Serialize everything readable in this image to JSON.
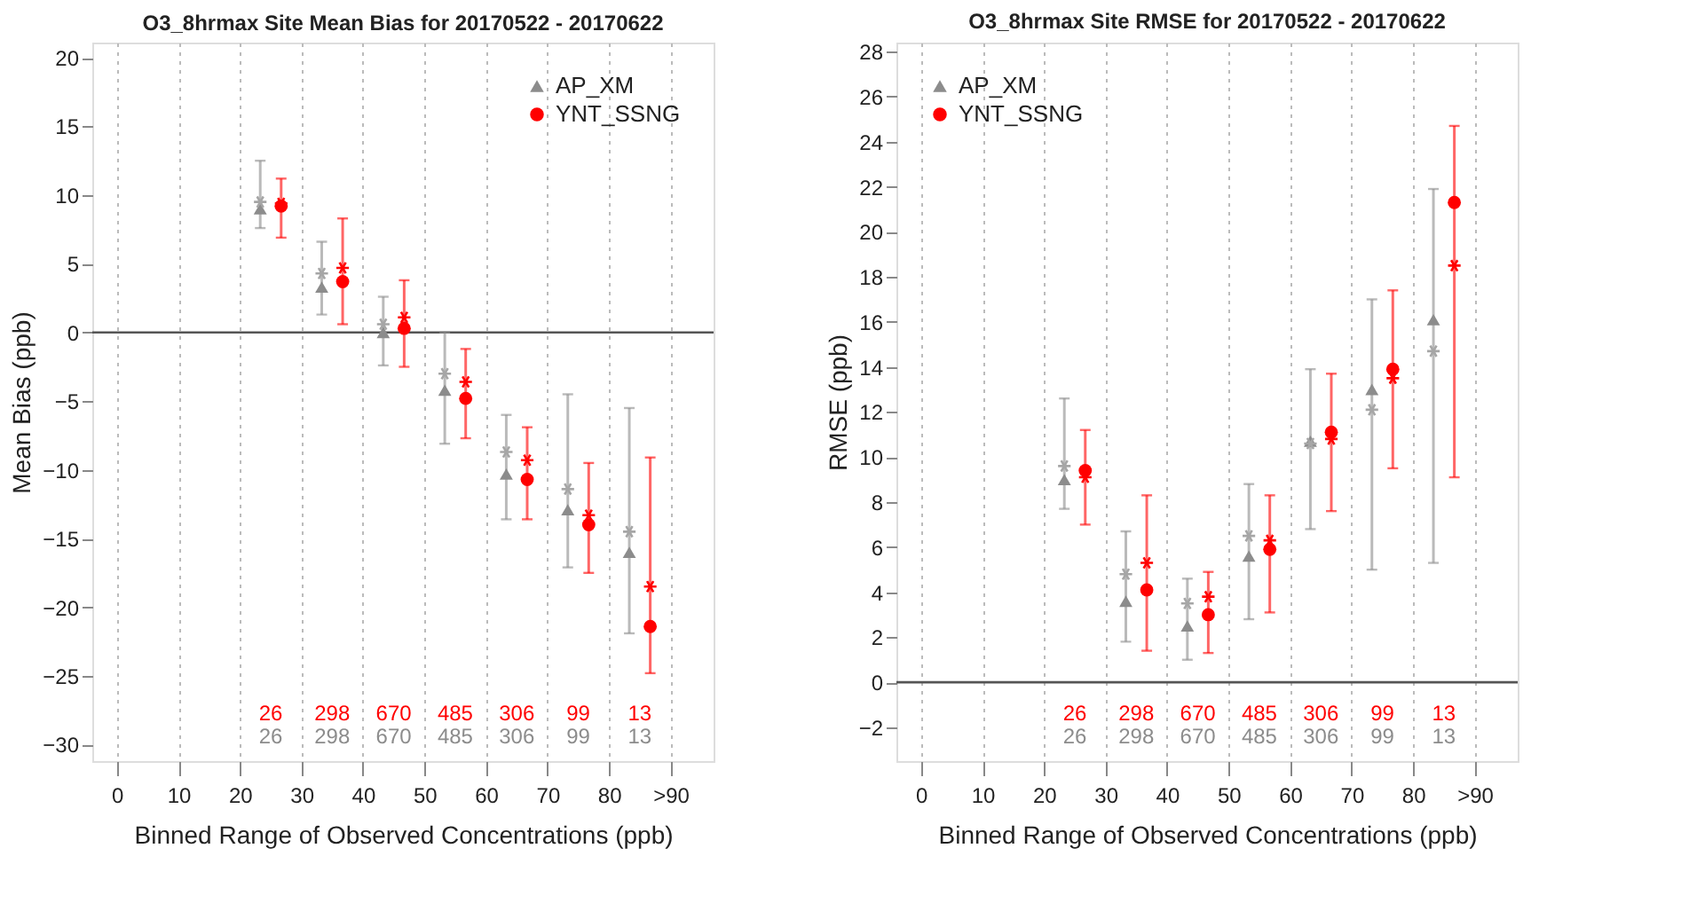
{
  "chart_data": [
    {
      "type": "scatter",
      "title": "O3_8hrmax Site Mean Bias for 20170522 - 20170622",
      "xlabel": "Binned Range of Observed Concentrations (ppb)",
      "ylabel": "Mean Bias (ppb)",
      "xlim": [
        -4,
        97
      ],
      "xticks": [
        0,
        10,
        20,
        30,
        40,
        50,
        60,
        70,
        80,
        {
          "value": 90,
          "label": ">90"
        }
      ],
      "ylim": [
        -31.2,
        21.1
      ],
      "yticks": [
        -30,
        -25,
        -20,
        -15,
        -10,
        -5,
        0,
        5,
        10,
        15,
        20
      ],
      "grid": "x",
      "legend": "top right",
      "ref_lines": [
        {
          "axis": "y",
          "value": 0,
          "color": "#555555"
        }
      ],
      "series": [
        {
          "name": "AP_XM",
          "color": "#8c8c8c",
          "marker": "triangle",
          "x": [
            23.3,
            33.3,
            43.3,
            53.3,
            63.3,
            73.3,
            83.3
          ],
          "values": [
            9.0,
            3.3,
            0.0,
            -4.2,
            -10.3,
            -12.9,
            -16.0
          ],
          "errors": [
            [
              7.6,
              12.5
            ],
            [
              1.3,
              6.6
            ],
            [
              -2.4,
              2.6
            ],
            [
              -8.1,
              0.0
            ],
            [
              -13.6,
              -6.0
            ],
            [
              -17.1,
              -4.5
            ],
            [
              -21.9,
              -5.5
            ]
          ]
        },
        {
          "name": "YNT_SSNG",
          "color": "#ff0000",
          "marker": "circle",
          "x": [
            26.7,
            36.7,
            46.7,
            56.7,
            66.7,
            76.7,
            86.7
          ],
          "values": [
            9.2,
            3.7,
            0.3,
            -4.8,
            -10.7,
            -14.0,
            -21.4
          ],
          "errors": [
            [
              6.9,
              11.2
            ],
            [
              0.6,
              8.3
            ],
            [
              -2.5,
              3.8
            ],
            [
              -7.7,
              -1.2
            ],
            [
              -13.6,
              -6.9
            ],
            [
              -17.5,
              -9.5
            ],
            [
              -24.8,
              -9.1
            ]
          ]
        },
        {
          "color": "#a6a6a6",
          "marker": "cross",
          "x": [
            23.3,
            33.3,
            43.3,
            53.3,
            63.3,
            73.3,
            83.3
          ],
          "values": [
            9.5,
            4.3,
            0.6,
            -3.0,
            -8.7,
            -11.4,
            -14.5
          ]
        },
        {
          "color": "#ff0000",
          "marker": "cross",
          "x": [
            26.7,
            36.7,
            46.7,
            56.7,
            66.7,
            76.7,
            86.7
          ],
          "values": [
            9.4,
            4.7,
            1.1,
            -3.6,
            -9.3,
            -13.3,
            -18.5
          ]
        }
      ],
      "annotations": [
        "26",
        "298",
        "670",
        "485",
        "306",
        "99",
        "13",
        "26",
        "298",
        "670",
        "485",
        "306",
        "99",
        "13"
      ]
    },
    {
      "type": "scatter",
      "title": "O3_8hrmax Site RMSE for 20170522 - 20170622",
      "xlabel": "Binned Range of Observed Concentrations (ppb)",
      "ylabel": "RMSE (ppb)",
      "xlim": [
        -4,
        97
      ],
      "xticks": [
        0,
        10,
        20,
        30,
        40,
        50,
        60,
        70,
        80,
        {
          "value": 90,
          "label": ">90"
        }
      ],
      "ylim": [
        -3.5,
        28.4
      ],
      "yticks": [
        -2,
        0,
        2,
        4,
        6,
        8,
        10,
        12,
        14,
        16,
        18,
        20,
        22,
        24,
        26,
        28
      ],
      "grid": "x",
      "legend": "top left",
      "ref_lines": [
        {
          "axis": "y",
          "value": 0,
          "color": "#555555"
        }
      ],
      "series": [
        {
          "name": "AP_XM",
          "color": "#8c8c8c",
          "marker": "triangle",
          "x": [
            23.3,
            33.3,
            43.3,
            53.3,
            63.3,
            73.3,
            83.3
          ],
          "values": [
            9.0,
            3.6,
            2.5,
            5.6,
            10.7,
            13.0,
            16.1
          ],
          "errors": [
            [
              7.7,
              12.6
            ],
            [
              1.8,
              6.7
            ],
            [
              1.0,
              4.6
            ],
            [
              2.8,
              8.8
            ],
            [
              6.8,
              13.9
            ],
            [
              5.0,
              17.0
            ],
            [
              5.3,
              21.9
            ]
          ]
        },
        {
          "name": "YNT_SSNG",
          "color": "#ff0000",
          "marker": "circle",
          "x": [
            26.7,
            36.7,
            46.7,
            56.7,
            66.7,
            76.7,
            86.7
          ],
          "values": [
            9.4,
            4.1,
            3.0,
            5.9,
            11.1,
            13.9,
            21.3
          ],
          "errors": [
            [
              7.0,
              11.2
            ],
            [
              1.4,
              8.3
            ],
            [
              1.3,
              4.9
            ],
            [
              3.1,
              8.3
            ],
            [
              7.6,
              13.7
            ],
            [
              9.5,
              17.4
            ],
            [
              9.1,
              24.7
            ]
          ]
        },
        {
          "color": "#a6a6a6",
          "marker": "cross",
          "x": [
            23.3,
            33.3,
            43.3,
            53.3,
            63.3,
            73.3,
            83.3
          ],
          "values": [
            9.6,
            4.8,
            3.5,
            6.5,
            10.6,
            12.1,
            14.7
          ]
        },
        {
          "color": "#ff0000",
          "marker": "cross",
          "x": [
            26.7,
            36.7,
            46.7,
            56.7,
            66.7,
            76.7,
            86.7
          ],
          "values": [
            9.1,
            5.3,
            3.8,
            6.3,
            10.8,
            13.5,
            18.5
          ]
        }
      ],
      "annotations": [
        "26",
        "298",
        "670",
        "485",
        "306",
        "99",
        "13",
        "26",
        "298",
        "670",
        "485",
        "306",
        "99",
        "13"
      ]
    }
  ]
}
